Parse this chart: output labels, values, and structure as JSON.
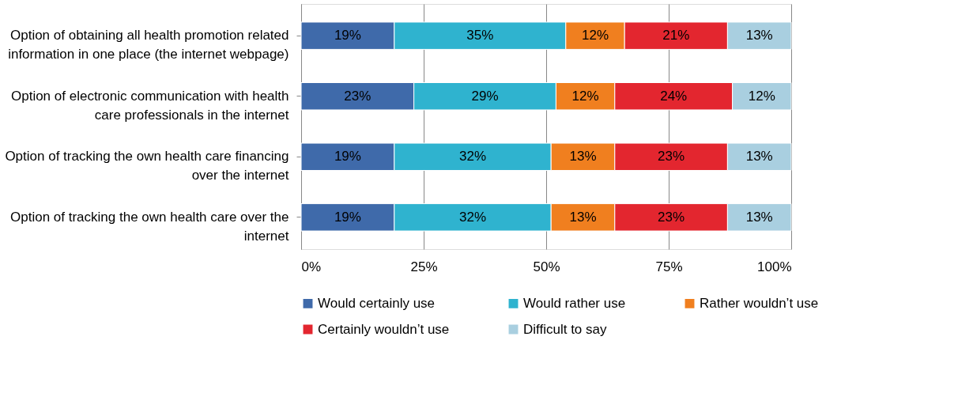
{
  "chart_data": {
    "type": "bar",
    "orientation": "horizontal",
    "stacked": true,
    "categories": [
      "Option of obtaining all health promotion related information in one place (the internet webpage)",
      "Option of electronic communication with health care professionals in the internet",
      "Option of tracking the own health care financing over the internet",
      "Option of tracking the own health care over the internet"
    ],
    "series": [
      {
        "name": "Would certainly use",
        "color": "#3f6aaa",
        "values": [
          19,
          23,
          19,
          19
        ],
        "value_labels": [
          "19%",
          "23%",
          "19%",
          "19%"
        ]
      },
      {
        "name": "Would rather use",
        "color": "#2fb3cf",
        "values": [
          35,
          29,
          32,
          32
        ],
        "value_labels": [
          "35%",
          "29%",
          "32%",
          "32%"
        ]
      },
      {
        "name": "Rather wouldn’t use",
        "color": "#f07f1f",
        "values": [
          12,
          12,
          13,
          13
        ],
        "value_labels": [
          "12%",
          "12%",
          "13%",
          "13%"
        ]
      },
      {
        "name": "Certainly wouldn’t use",
        "color": "#e3262f",
        "values": [
          21,
          24,
          23,
          23
        ],
        "value_labels": [
          "21%",
          "24%",
          "23%",
          "23%"
        ]
      },
      {
        "name": "Difficult to say",
        "color": "#a9cfe0",
        "values": [
          13,
          12,
          13,
          13
        ],
        "value_labels": [
          "13%",
          "12%",
          "13%",
          "13%"
        ]
      }
    ],
    "xlim": [
      0,
      100
    ],
    "xticks": [
      {
        "value": 0,
        "label": "0%"
      },
      {
        "value": 25,
        "label": "25%"
      },
      {
        "value": 50,
        "label": "50%"
      },
      {
        "value": 75,
        "label": "75%"
      },
      {
        "value": 100,
        "label": "100%"
      }
    ],
    "grid": "x",
    "legend": "bottom"
  }
}
